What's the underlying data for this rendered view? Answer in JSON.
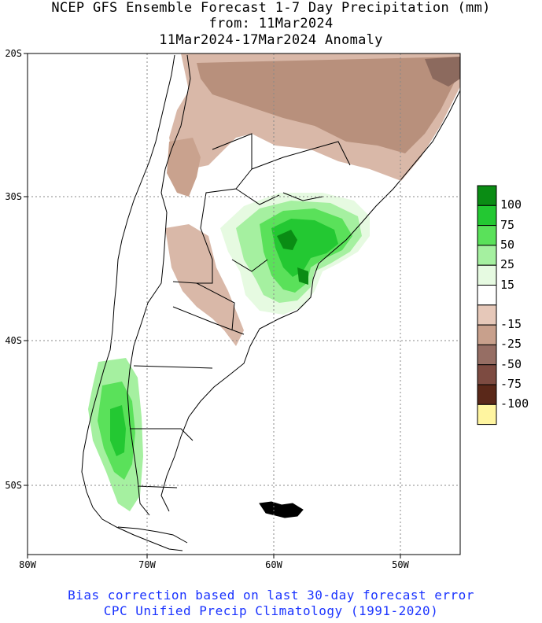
{
  "title": {
    "line1": "NCEP GFS Ensemble Forecast 1-7 Day Precipitation (mm)",
    "line2": "from: 11Mar2024",
    "line3": "11Mar2024-17Mar2024 Anomaly"
  },
  "axes": {
    "lat_labels": [
      "20S",
      "30S",
      "40S",
      "50S"
    ],
    "lon_labels": [
      "80W",
      "70W",
      "60W",
      "50W"
    ]
  },
  "legend": {
    "items": [
      {
        "label": "100",
        "color": "#0a8c14"
      },
      {
        "label": "75",
        "color": "#23c832"
      },
      {
        "label": "50",
        "color": "#5ae15a"
      },
      {
        "label": "25",
        "color": "#a5f0a0"
      },
      {
        "label": "15",
        "color": "#e6fae1"
      },
      {
        "label": "",
        "color": "#ffffff"
      },
      {
        "label": "-15",
        "color": "#e6c8b9"
      },
      {
        "label": "-25",
        "color": "#c8a08c"
      },
      {
        "label": "-50",
        "color": "#966e64"
      },
      {
        "label": "-75",
        "color": "#7d4b41"
      },
      {
        "label": "-100",
        "color": "#5a2819"
      },
      {
        "label": "",
        "color": "#fff5a0"
      }
    ]
  },
  "footer": {
    "line1": "Bias correction based on last 30-day forecast error",
    "line2": "CPC Unified Precip Climatology (1991-2020)"
  }
}
